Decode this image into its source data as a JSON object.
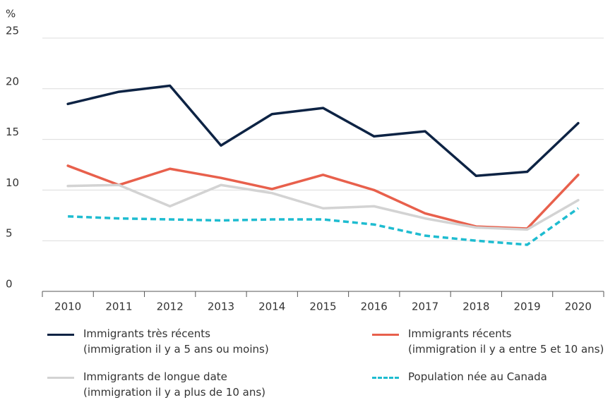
{
  "chart_data": {
    "type": "line",
    "y_label": "%",
    "categories": [
      "2010",
      "2011",
      "2012",
      "2013",
      "2014",
      "2015",
      "2016",
      "2017",
      "2018",
      "2019",
      "2020"
    ],
    "series": [
      {
        "name": "Immigrants très récents\n(immigration il y a 5 ans ou moins)",
        "color": "#0d2344",
        "dash": false,
        "values": [
          18.5,
          19.7,
          20.3,
          14.4,
          17.5,
          18.1,
          15.3,
          15.8,
          11.4,
          11.8,
          16.6
        ]
      },
      {
        "name": "Immigrants récents\n(immigration il y a entre 5 et 10 ans)",
        "color": "#e8604c",
        "dash": false,
        "values": [
          12.4,
          10.5,
          12.1,
          11.2,
          10.1,
          11.5,
          10.0,
          7.7,
          6.4,
          6.2,
          11.5
        ]
      },
      {
        "name": "Immigrants de longue date\n(immigration il y a plus de 10 ans)",
        "color": "#d3d3d3",
        "dash": false,
        "values": [
          10.4,
          10.5,
          8.4,
          10.5,
          9.7,
          8.2,
          8.4,
          7.2,
          6.3,
          6.1,
          9.0
        ]
      },
      {
        "name": "Population née au Canada",
        "color": "#1ebcd0",
        "dash": true,
        "values": [
          7.4,
          7.2,
          7.1,
          7.0,
          7.1,
          7.1,
          6.6,
          5.5,
          5.0,
          4.6,
          8.2
        ]
      }
    ],
    "ylim": [
      0,
      25
    ],
    "yticks": [
      0,
      5,
      10,
      15,
      20,
      25
    ],
    "grid": true
  }
}
